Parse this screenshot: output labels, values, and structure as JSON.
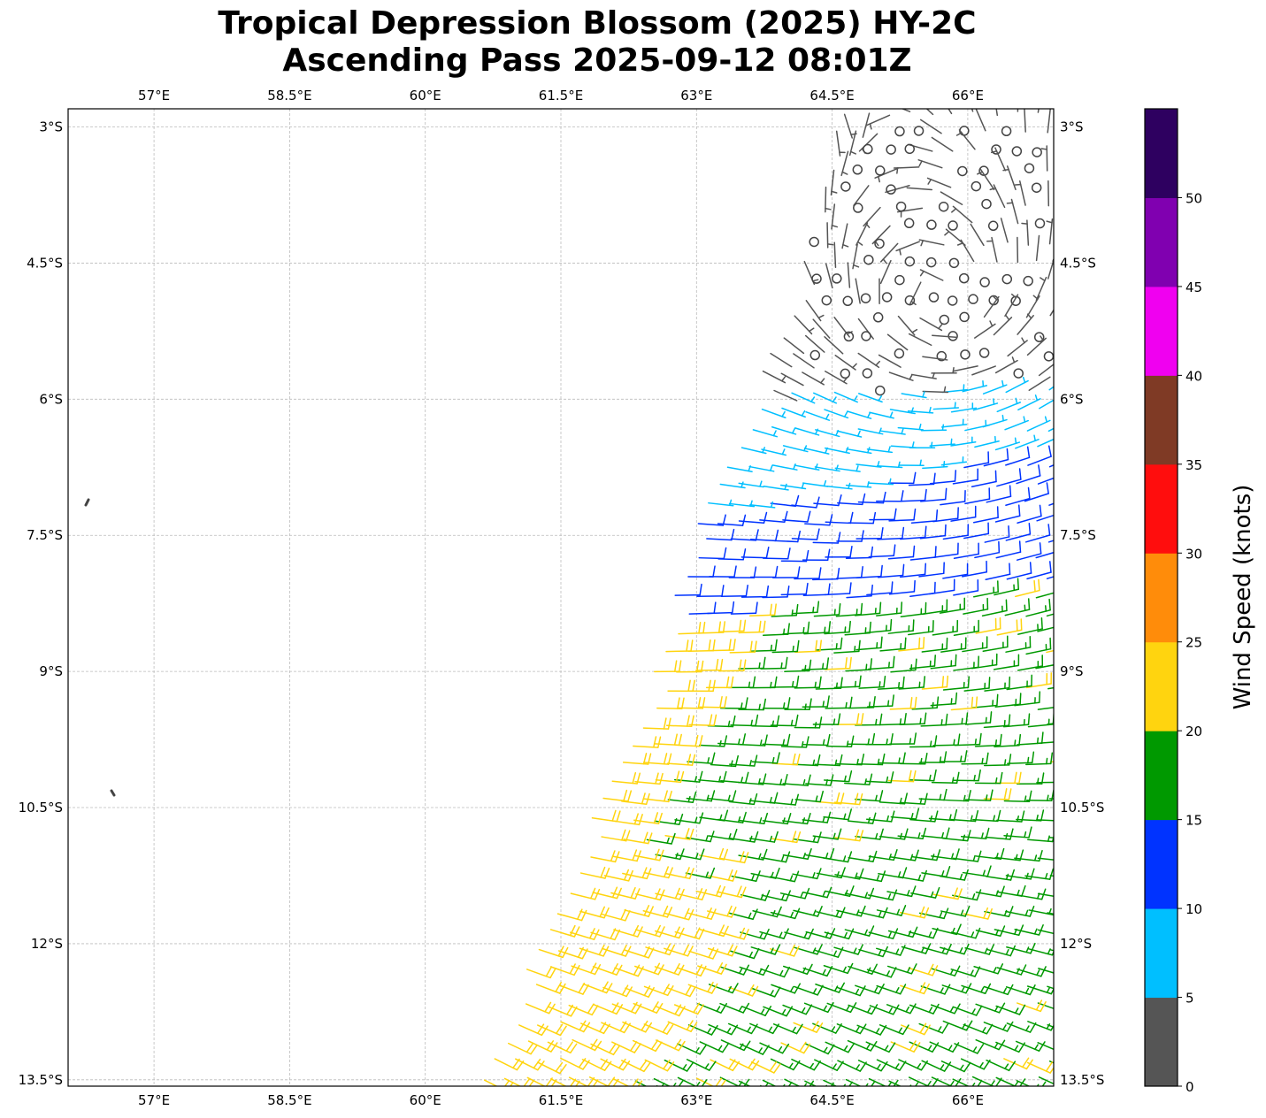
{
  "title": {
    "line1": "Tropical Depression Blossom (2025) HY-2C",
    "line2": "Ascending Pass 2025-09-12 08:01Z"
  },
  "chart_data": {
    "type": "map",
    "subtype": "wind-barbs",
    "title": "Tropical Depression Blossom (2025) HY-2C Ascending Pass 2025-09-12 08:01Z",
    "lon_ticks": [
      "57°E",
      "58.5°E",
      "60°E",
      "61.5°E",
      "63°E",
      "64.5°E",
      "66°E"
    ],
    "lon_values": [
      57,
      58.5,
      60,
      61.5,
      63,
      64.5,
      66
    ],
    "lat_ticks": [
      "3°S",
      "4.5°S",
      "6°S",
      "7.5°S",
      "9°S",
      "10.5°S",
      "12°S",
      "13.5°S"
    ],
    "lat_values": [
      -3,
      -4.5,
      -6,
      -7.5,
      -9,
      -10.5,
      -12,
      -13.5
    ],
    "extent": {
      "lon": [
        56.05,
        66.95
      ],
      "lat": [
        -13.57,
        -2.8
      ]
    },
    "grid": true,
    "colorbar": {
      "label": "Wind Speed (knots)",
      "range": [
        0,
        55
      ],
      "ticks": [
        "0",
        "5",
        "10",
        "15",
        "20",
        "25",
        "30",
        "35",
        "40",
        "45",
        "50"
      ],
      "tick_values": [
        0,
        5,
        10,
        15,
        20,
        25,
        30,
        35,
        40,
        45,
        50
      ],
      "colors": [
        "#555555",
        "#00bfff",
        "#0033ff",
        "#009900",
        "#ffd40f",
        "#ff8c0a",
        "#ff0d0d",
        "#7f3a25",
        "#f000f0",
        "#8000b0",
        "#2e0060"
      ]
    },
    "circulation_center_approx": {
      "lon": 66.0,
      "lat": -4.9
    }
  }
}
